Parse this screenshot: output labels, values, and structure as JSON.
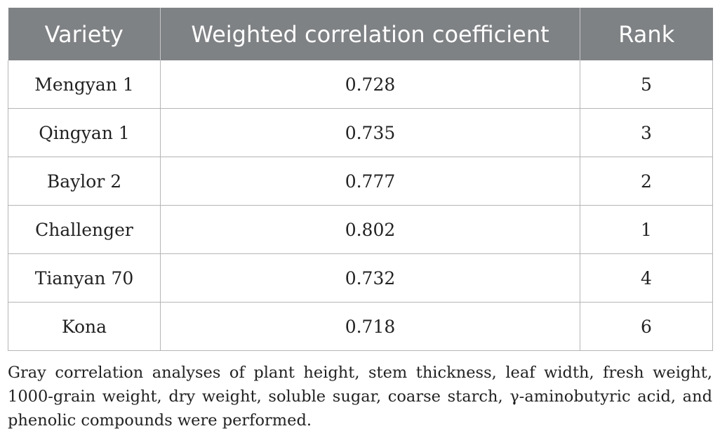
{
  "table": {
    "headers": [
      "Variety",
      "Weighted correlation coefficient",
      "Rank"
    ],
    "rows": [
      [
        "Mengyan 1",
        "0.728",
        "5"
      ],
      [
        "Qingyan 1",
        "0.735",
        "3"
      ],
      [
        "Baylor 2",
        "0.777",
        "2"
      ],
      [
        "Challenger",
        "0.802",
        "1"
      ],
      [
        "Tianyan 70",
        "0.732",
        "4"
      ],
      [
        "Kona",
        "0.718",
        "6"
      ]
    ]
  },
  "footnote": "Gray correlation analyses of plant height, stem thickness, leaf width, fresh weight, 1000-grain weight, dry weight, soluble sugar, coarse starch, γ-aminobutyric acid, and phenolic compounds were performed.",
  "colors": {
    "header_background": "#7f8285",
    "header_text": "#ffffff",
    "grid_lines": "#b5b5b5",
    "body_text": "#222222"
  }
}
